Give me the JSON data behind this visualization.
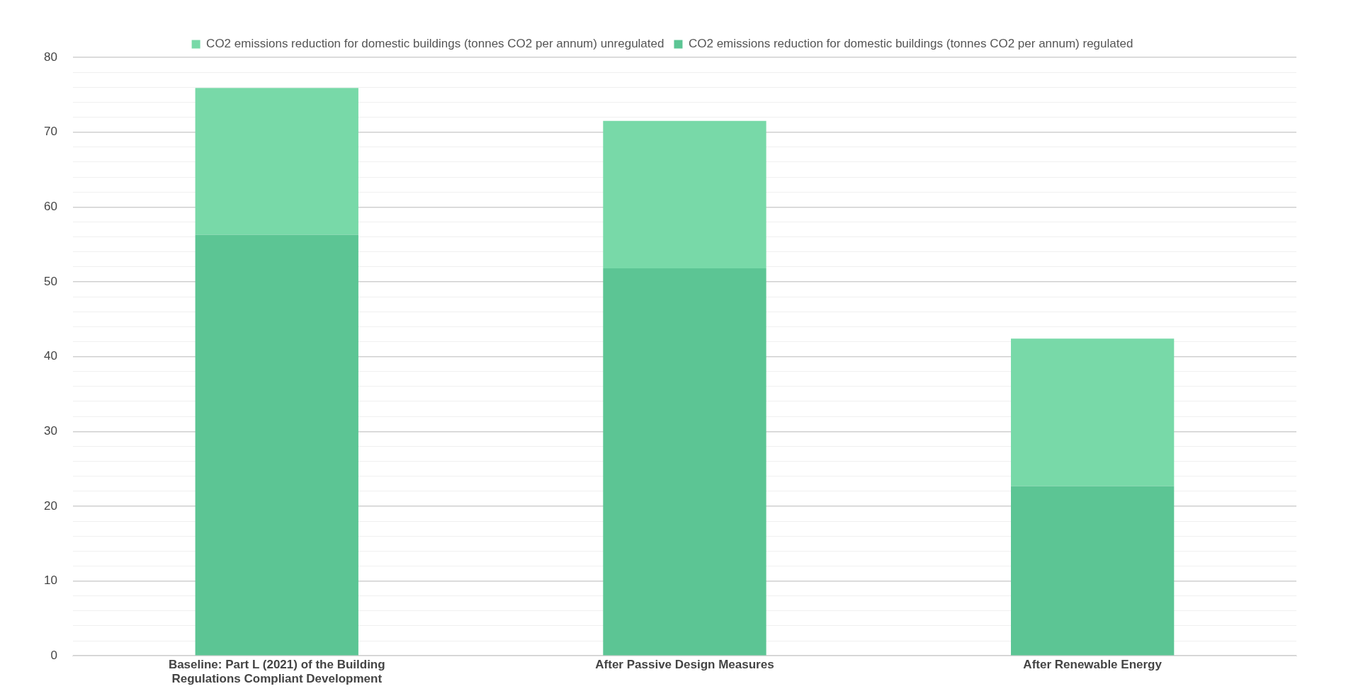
{
  "chart_data": {
    "type": "bar",
    "stacked": true,
    "legend": "top",
    "grid": "y",
    "categories": [
      "Baseline: Part L (2021) of the Building Regulations Compliant Development",
      "After Passive Design Measures",
      "After Renewable Energy"
    ],
    "series": [
      {
        "name": "CO2 emissions reduction for domestic buildings (tonnes CO2 per annum) regulated",
        "color": "#5cc594",
        "values": [
          56.3,
          51.8,
          22.7
        ]
      },
      {
        "name": "CO2 emissions reduction for domestic buildings (tonnes CO2 per annum) unregulated",
        "color": "#78d9a8",
        "values": [
          19.6,
          19.7,
          19.7
        ]
      }
    ],
    "ylim": [
      0,
      80
    ],
    "yticks": [
      0,
      {
        "value": 2,
        "label": null
      },
      {
        "value": 4,
        "label": null
      },
      {
        "value": 6,
        "label": null
      },
      {
        "value": 8,
        "label": null
      },
      10,
      {
        "value": 12,
        "label": null
      },
      {
        "value": 14,
        "label": null
      },
      {
        "value": 16,
        "label": null
      },
      {
        "value": 18,
        "label": null
      },
      20,
      {
        "value": 22,
        "label": null
      },
      {
        "value": 24,
        "label": null
      },
      {
        "value": 26,
        "label": null
      },
      {
        "value": 28,
        "label": null
      },
      30,
      {
        "value": 32,
        "label": null
      },
      {
        "value": 34,
        "label": null
      },
      {
        "value": 36,
        "label": null
      },
      {
        "value": 38,
        "label": null
      },
      40,
      {
        "value": 42,
        "label": null
      },
      {
        "value": 44,
        "label": null
      },
      {
        "value": 46,
        "label": null
      },
      {
        "value": 48,
        "label": null
      },
      50,
      {
        "value": 52,
        "label": null
      },
      {
        "value": 54,
        "label": null
      },
      {
        "value": 56,
        "label": null
      },
      {
        "value": 58,
        "label": null
      },
      60,
      {
        "value": 62,
        "label": null
      },
      {
        "value": 64,
        "label": null
      },
      {
        "value": 66,
        "label": null
      },
      {
        "value": 68,
        "label": null
      },
      70,
      {
        "value": 72,
        "label": null
      },
      {
        "value": 74,
        "label": null
      },
      {
        "value": 76,
        "label": null
      },
      {
        "value": 78,
        "label": null
      },
      80
    ]
  }
}
